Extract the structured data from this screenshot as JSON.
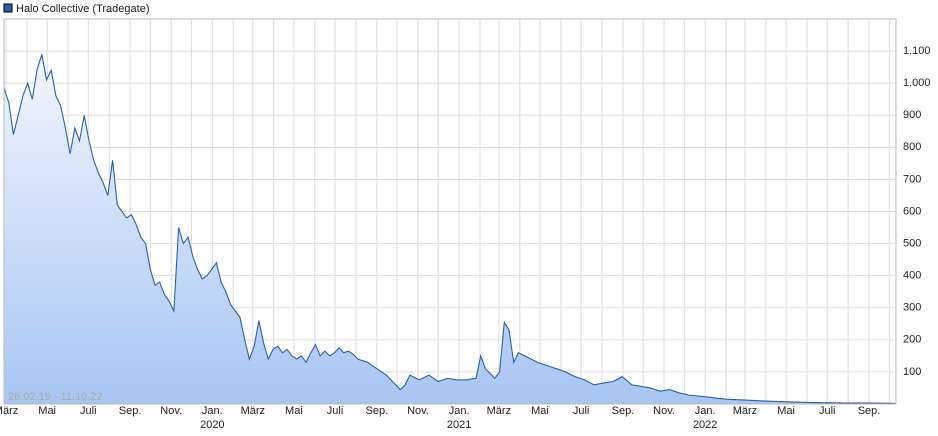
{
  "chart_data": {
    "type": "area",
    "series": [
      {
        "name": "Halo Collective (Tradegate)",
        "color": "#2a5fad",
        "values": [
          985,
          940,
          840,
          900,
          960,
          1000,
          950,
          1040,
          1090,
          1010,
          1040,
          960,
          930,
          860,
          780,
          860,
          820,
          900,
          820,
          760,
          720,
          690,
          650,
          760,
          620,
          600,
          580,
          590,
          560,
          520,
          500,
          420,
          370,
          380,
          340,
          320,
          290,
          550,
          500,
          520,
          460,
          420,
          390,
          400,
          420,
          440,
          380,
          350,
          310,
          290,
          270,
          200,
          140,
          180,
          260,
          190,
          140,
          170,
          180,
          160,
          170,
          150,
          140,
          150,
          130,
          160,
          185,
          150,
          165,
          150,
          160,
          175,
          160,
          165,
          155,
          140,
          130,
          110,
          90,
          60,
          45,
          60,
          90,
          75,
          90,
          70,
          80,
          75,
          75,
          80,
          150,
          110,
          80,
          100,
          255,
          230,
          130,
          160,
          145,
          130,
          120,
          110,
          100,
          85,
          75,
          60,
          65,
          70,
          85,
          60,
          55,
          50,
          40,
          45,
          35,
          28,
          25,
          22,
          18,
          15,
          12,
          9,
          7,
          5,
          4,
          3,
          3,
          2
        ]
      }
    ],
    "x": [
      "2019-02-26",
      "2019-03-05",
      "2019-03-12",
      "2019-03-19",
      "2019-03-26",
      "2019-04-02",
      "2019-04-09",
      "2019-04-16",
      "2019-04-23",
      "2019-04-30",
      "2019-05-07",
      "2019-05-14",
      "2019-05-21",
      "2019-05-28",
      "2019-06-04",
      "2019-06-11",
      "2019-06-18",
      "2019-06-25",
      "2019-07-02",
      "2019-07-09",
      "2019-07-16",
      "2019-07-23",
      "2019-07-30",
      "2019-08-06",
      "2019-08-13",
      "2019-08-20",
      "2019-08-27",
      "2019-09-03",
      "2019-09-10",
      "2019-09-17",
      "2019-09-24",
      "2019-10-01",
      "2019-10-08",
      "2019-10-15",
      "2019-10-22",
      "2019-10-29",
      "2019-11-05",
      "2019-11-12",
      "2019-11-19",
      "2019-11-26",
      "2019-12-03",
      "2019-12-10",
      "2019-12-17",
      "2019-12-24",
      "2019-12-31",
      "2020-01-07",
      "2020-01-14",
      "2020-01-21",
      "2020-01-28",
      "2020-02-04",
      "2020-02-11",
      "2020-02-18",
      "2020-02-25",
      "2020-03-03",
      "2020-03-10",
      "2020-03-17",
      "2020-03-24",
      "2020-03-31",
      "2020-04-07",
      "2020-04-14",
      "2020-04-21",
      "2020-04-28",
      "2020-05-05",
      "2020-05-12",
      "2020-05-19",
      "2020-05-26",
      "2020-06-02",
      "2020-06-09",
      "2020-06-16",
      "2020-06-23",
      "2020-06-30",
      "2020-07-07",
      "2020-07-14",
      "2020-07-21",
      "2020-07-28",
      "2020-08-04",
      "2020-08-18",
      "2020-09-01",
      "2020-09-15",
      "2020-09-29",
      "2020-10-06",
      "2020-10-13",
      "2020-10-20",
      "2020-11-03",
      "2020-11-17",
      "2020-12-01",
      "2020-12-15",
      "2020-12-29",
      "2021-01-12",
      "2021-01-26",
      "2021-02-02",
      "2021-02-09",
      "2021-02-23",
      "2021-03-02",
      "2021-03-09",
      "2021-03-16",
      "2021-03-23",
      "2021-03-30",
      "2021-04-13",
      "2021-04-27",
      "2021-05-11",
      "2021-05-25",
      "2021-06-08",
      "2021-06-22",
      "2021-07-06",
      "2021-07-20",
      "2021-08-03",
      "2021-08-17",
      "2021-08-31",
      "2021-09-14",
      "2021-09-28",
      "2021-10-12",
      "2021-10-26",
      "2021-11-09",
      "2021-11-23",
      "2021-12-07",
      "2021-12-21",
      "2022-01-04",
      "2022-01-18",
      "2022-02-01",
      "2022-03-01",
      "2022-04-01",
      "2022-05-01",
      "2022-06-01",
      "2022-07-01",
      "2022-08-01",
      "2022-09-01",
      "2022-10-11"
    ],
    "xlim": [
      "2019-02-26",
      "2022-10-11"
    ],
    "xticks": [
      {
        "value": "2019-03-01",
        "label": "März"
      },
      {
        "value": "2019-05-01",
        "label": "Mai"
      },
      {
        "value": "2019-07-01",
        "label": "Juli"
      },
      {
        "value": "2019-09-01",
        "label": "Sep."
      },
      {
        "value": "2019-11-01",
        "label": "Nov."
      },
      {
        "value": "2020-01-01",
        "label": "Jan."
      },
      {
        "value": "2020-03-01",
        "label": "März"
      },
      {
        "value": "2020-05-01",
        "label": "Mai"
      },
      {
        "value": "2020-07-01",
        "label": "Juli"
      },
      {
        "value": "2020-09-01",
        "label": "Sep."
      },
      {
        "value": "2020-11-01",
        "label": "Nov."
      },
      {
        "value": "2021-01-01",
        "label": "Jan."
      },
      {
        "value": "2021-03-01",
        "label": "März"
      },
      {
        "value": "2021-05-01",
        "label": "Mai"
      },
      {
        "value": "2021-07-01",
        "label": "Juli"
      },
      {
        "value": "2021-09-01",
        "label": "Sep."
      },
      {
        "value": "2021-11-01",
        "label": "Nov."
      },
      {
        "value": "2022-01-01",
        "label": "Jan."
      },
      {
        "value": "2022-03-01",
        "label": "März"
      },
      {
        "value": "2022-05-01",
        "label": "Mai"
      },
      {
        "value": "2022-07-01",
        "label": "Juli"
      },
      {
        "value": "2022-09-01",
        "label": "Sep."
      }
    ],
    "x_minor_ticks": [
      "2019-04-01",
      "2019-06-01",
      "2019-08-01",
      "2019-10-01",
      "2019-12-01",
      "2020-02-01",
      "2020-04-01",
      "2020-06-01",
      "2020-08-01",
      "2020-10-01",
      "2020-12-01",
      "2021-02-01",
      "2021-04-01",
      "2021-06-01",
      "2021-08-01",
      "2021-10-01",
      "2021-12-01",
      "2022-02-01",
      "2022-04-01",
      "2022-06-01",
      "2022-08-01",
      "2022-10-01"
    ],
    "year_labels": [
      {
        "value": "2020-01-01",
        "label": "2020"
      },
      {
        "value": "2021-01-01",
        "label": "2021"
      },
      {
        "value": "2022-01-01",
        "label": "2022"
      }
    ],
    "ylim": [
      0,
      1200
    ],
    "yticks": [
      100,
      200,
      300,
      400,
      500,
      600,
      700,
      800,
      900,
      {
        "value": 1000,
        "label": "1.000"
      },
      {
        "value": 1100,
        "label": "1.100"
      }
    ],
    "grid": true,
    "legend": "top-left",
    "annotation": "26.02.19 - 11.10.22"
  }
}
